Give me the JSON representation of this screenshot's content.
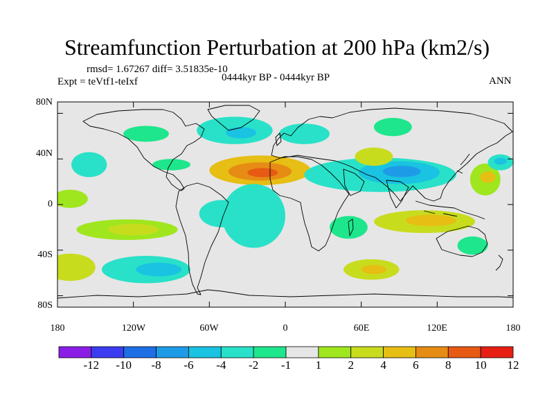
{
  "title": "Streamfunction Perturbation at 200 hPa (km2/s)",
  "stats": "rmsd= 1.67267 diff= 3.51835e-10",
  "experiment": "Expt = teVtf1-teIxf",
  "period": "0444kyr BP - 0444kyr BP",
  "season": "ANN",
  "lat_labels": [
    "80N",
    "40N",
    "0",
    "40S",
    "80S"
  ],
  "lon_labels": [
    "180",
    "120W",
    "60W",
    "0",
    "60E",
    "120E",
    "180"
  ],
  "colorbar": {
    "labels": [
      "-12",
      "-10",
      "-8",
      "-6",
      "-4",
      "-2",
      "-1",
      "1",
      "2",
      "4",
      "6",
      "8",
      "10",
      "12"
    ],
    "colors": [
      "#8a1ee6",
      "#3c3cf0",
      "#1e6ee6",
      "#1e9be6",
      "#19c3e1",
      "#28e1c8",
      "#1ee68c",
      "#e6e6e6",
      "#a0e61e",
      "#c8dc1e",
      "#e6be14",
      "#e68c14",
      "#e65a14",
      "#e61e14"
    ]
  },
  "map": {
    "background": "#e6e6e6",
    "lon_range": [
      -180,
      180
    ],
    "lat_range": [
      -90,
      90
    ],
    "anomalies": [
      {
        "name": "n-africa-atlantic-high",
        "lon": -20,
        "lat": 30,
        "rx": 40,
        "ry": 13,
        "level": 3
      },
      {
        "name": "n-africa-atlantic-high-core",
        "lon": -20,
        "lat": 29,
        "rx": 25,
        "ry": 8,
        "level": 4
      },
      {
        "name": "n-africa-atlantic-high-peak",
        "lon": -18,
        "lat": 28,
        "rx": 12,
        "ry": 4,
        "level": 5
      },
      {
        "name": "central-asia-low",
        "lon": 75,
        "lat": 26,
        "rx": 60,
        "ry": 15,
        "level": -2
      },
      {
        "name": "central-asia-low-core",
        "lon": 90,
        "lat": 28,
        "rx": 32,
        "ry": 10,
        "level": -3
      },
      {
        "name": "central-asia-low-peak",
        "lon": 92,
        "lat": 29,
        "rx": 15,
        "ry": 5,
        "level": -4
      },
      {
        "name": "south-atlantic-low",
        "lon": -25,
        "lat": -10,
        "rx": 25,
        "ry": 28,
        "level": -2
      },
      {
        "name": "tropical-atlantic-low",
        "lon": -50,
        "lat": -8,
        "rx": 18,
        "ry": 12,
        "level": -2
      },
      {
        "name": "south-pacific-high",
        "lon": -125,
        "lat": -22,
        "rx": 40,
        "ry": 9,
        "level": 1
      },
      {
        "name": "south-pacific-high-core",
        "lon": -120,
        "lat": -22,
        "rx": 20,
        "ry": 5,
        "level": 2
      },
      {
        "name": "southern-ocean-low",
        "lon": -110,
        "lat": -57,
        "rx": 35,
        "ry": 12,
        "level": -2
      },
      {
        "name": "southern-ocean-low-core",
        "lon": -100,
        "lat": -57,
        "rx": 18,
        "ry": 6,
        "level": -3
      },
      {
        "name": "australia-high",
        "lon": 110,
        "lat": -15,
        "rx": 40,
        "ry": 10,
        "level": 2
      },
      {
        "name": "australia-high-core",
        "lon": 115,
        "lat": -14,
        "rx": 20,
        "ry": 5,
        "level": 3
      },
      {
        "name": "s-indian-ocean-high",
        "lon": 68,
        "lat": -57,
        "rx": 22,
        "ry": 9,
        "level": 2
      },
      {
        "name": "s-indian-ocean-high-core",
        "lon": 70,
        "lat": -57,
        "rx": 10,
        "ry": 4,
        "level": 3
      },
      {
        "name": "e-australia-low",
        "lon": 148,
        "lat": -36,
        "rx": 12,
        "ry": 8,
        "level": -1
      },
      {
        "name": "ne-pacific-high",
        "lon": 158,
        "lat": 22,
        "rx": 12,
        "ry": 14,
        "level": 1
      },
      {
        "name": "ne-pacific-high-core",
        "lon": 160,
        "lat": 24,
        "rx": 6,
        "ry": 5,
        "level": 3
      },
      {
        "name": "north-atlantic-low",
        "lon": -40,
        "lat": 65,
        "rx": 30,
        "ry": 12,
        "level": -2
      },
      {
        "name": "north-atlantic-low-core",
        "lon": -35,
        "lat": 63,
        "rx": 12,
        "ry": 5,
        "level": -3
      },
      {
        "name": "scandinavia-low",
        "lon": 15,
        "lat": 62,
        "rx": 20,
        "ry": 9,
        "level": -2
      },
      {
        "name": "siberia-low",
        "lon": 85,
        "lat": 68,
        "rx": 15,
        "ry": 8,
        "level": -1
      },
      {
        "name": "arctic-canada-low",
        "lon": -110,
        "lat": 62,
        "rx": 18,
        "ry": 7,
        "level": -1
      },
      {
        "name": "central-pacific-low",
        "lon": -155,
        "lat": 35,
        "rx": 14,
        "ry": 11,
        "level": -2
      },
      {
        "name": "north-america-low",
        "lon": -90,
        "lat": 35,
        "rx": 15,
        "ry": 5,
        "level": -1
      },
      {
        "name": "se-europe-high",
        "lon": 70,
        "lat": 42,
        "rx": 15,
        "ry": 8,
        "level": 2
      },
      {
        "name": "mid-pacific-high",
        "lon": -170,
        "lat": 5,
        "rx": 14,
        "ry": 8,
        "level": 1
      },
      {
        "name": "indian-ocean-low",
        "lon": 50,
        "lat": -20,
        "rx": 15,
        "ry": 10,
        "level": -1
      },
      {
        "name": "east-pacific-high",
        "lon": -170,
        "lat": -55,
        "rx": 20,
        "ry": 12,
        "level": 2
      },
      {
        "name": "west-pacific-low",
        "lon": 170,
        "lat": 37,
        "rx": 10,
        "ry": 7,
        "level": -2
      },
      {
        "name": "west-pacific-low-core",
        "lon": 170,
        "lat": 38,
        "rx": 5,
        "ry": 3,
        "level": -3
      }
    ]
  }
}
